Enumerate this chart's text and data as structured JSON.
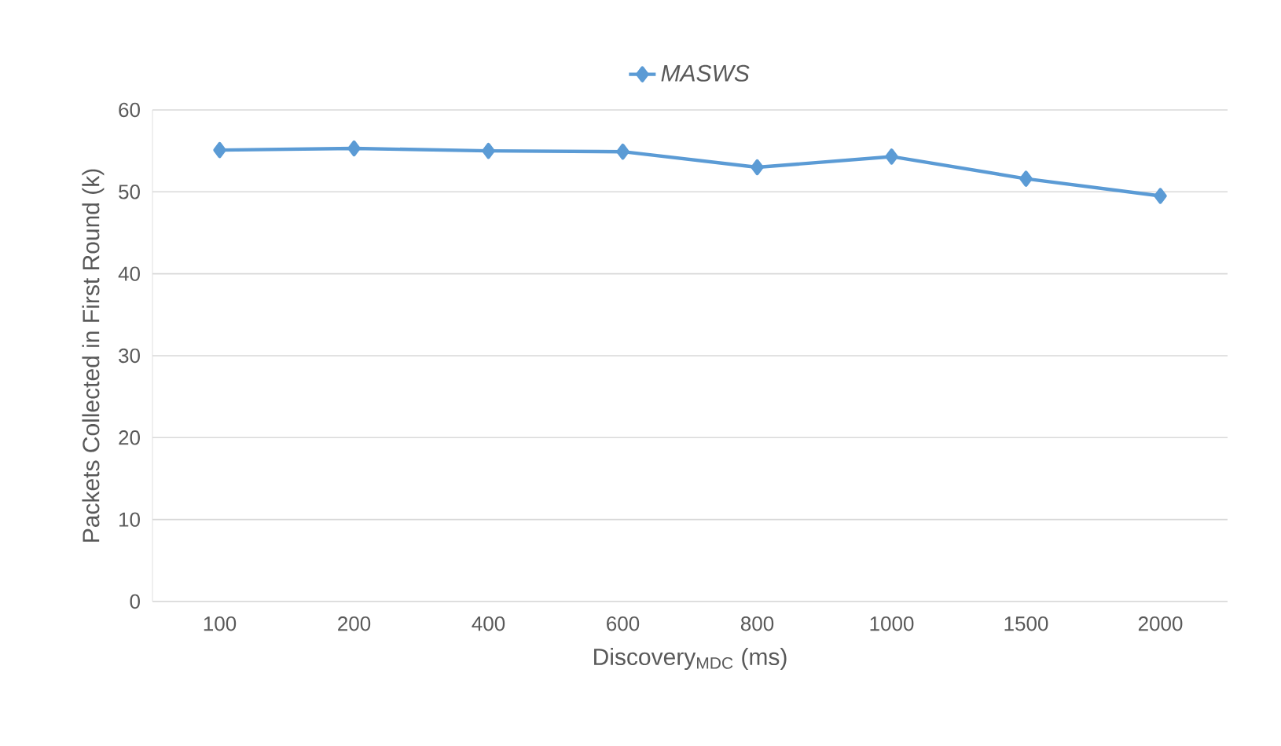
{
  "chart_data": {
    "type": "line",
    "xlabel": "Discovery$_{MDC}$ (ms)",
    "ylabel": "Packets Collected in First Round (k)",
    "categories": [
      "100",
      "200",
      "400",
      "600",
      "800",
      "1000",
      "1500",
      "2000"
    ],
    "series": [
      {
        "name": "*MASWS*",
        "color": "#5b9bd5",
        "values": [
          55.1,
          55.3,
          55.0,
          54.9,
          53.0,
          54.3,
          51.6,
          49.5
        ]
      }
    ],
    "ylim": [
      0,
      60
    ],
    "yticks": [
      0,
      10,
      20,
      30,
      40,
      50,
      60
    ],
    "grid": "y",
    "legend": "top",
    "marker": "diamond",
    "line_style": "solid"
  }
}
